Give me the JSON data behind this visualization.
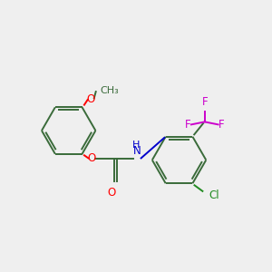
{
  "bg_color": "#efefef",
  "bond_color": "#3a6b3a",
  "O_color": "#ff0000",
  "N_color": "#0000cc",
  "F_color": "#cc00cc",
  "Cl_color": "#228b22",
  "line_width": 1.4,
  "font_size": 8.5,
  "fig_size": [
    3.0,
    3.0
  ],
  "dpi": 100,
  "xlim": [
    0,
    10
  ],
  "ylim": [
    0,
    10
  ]
}
